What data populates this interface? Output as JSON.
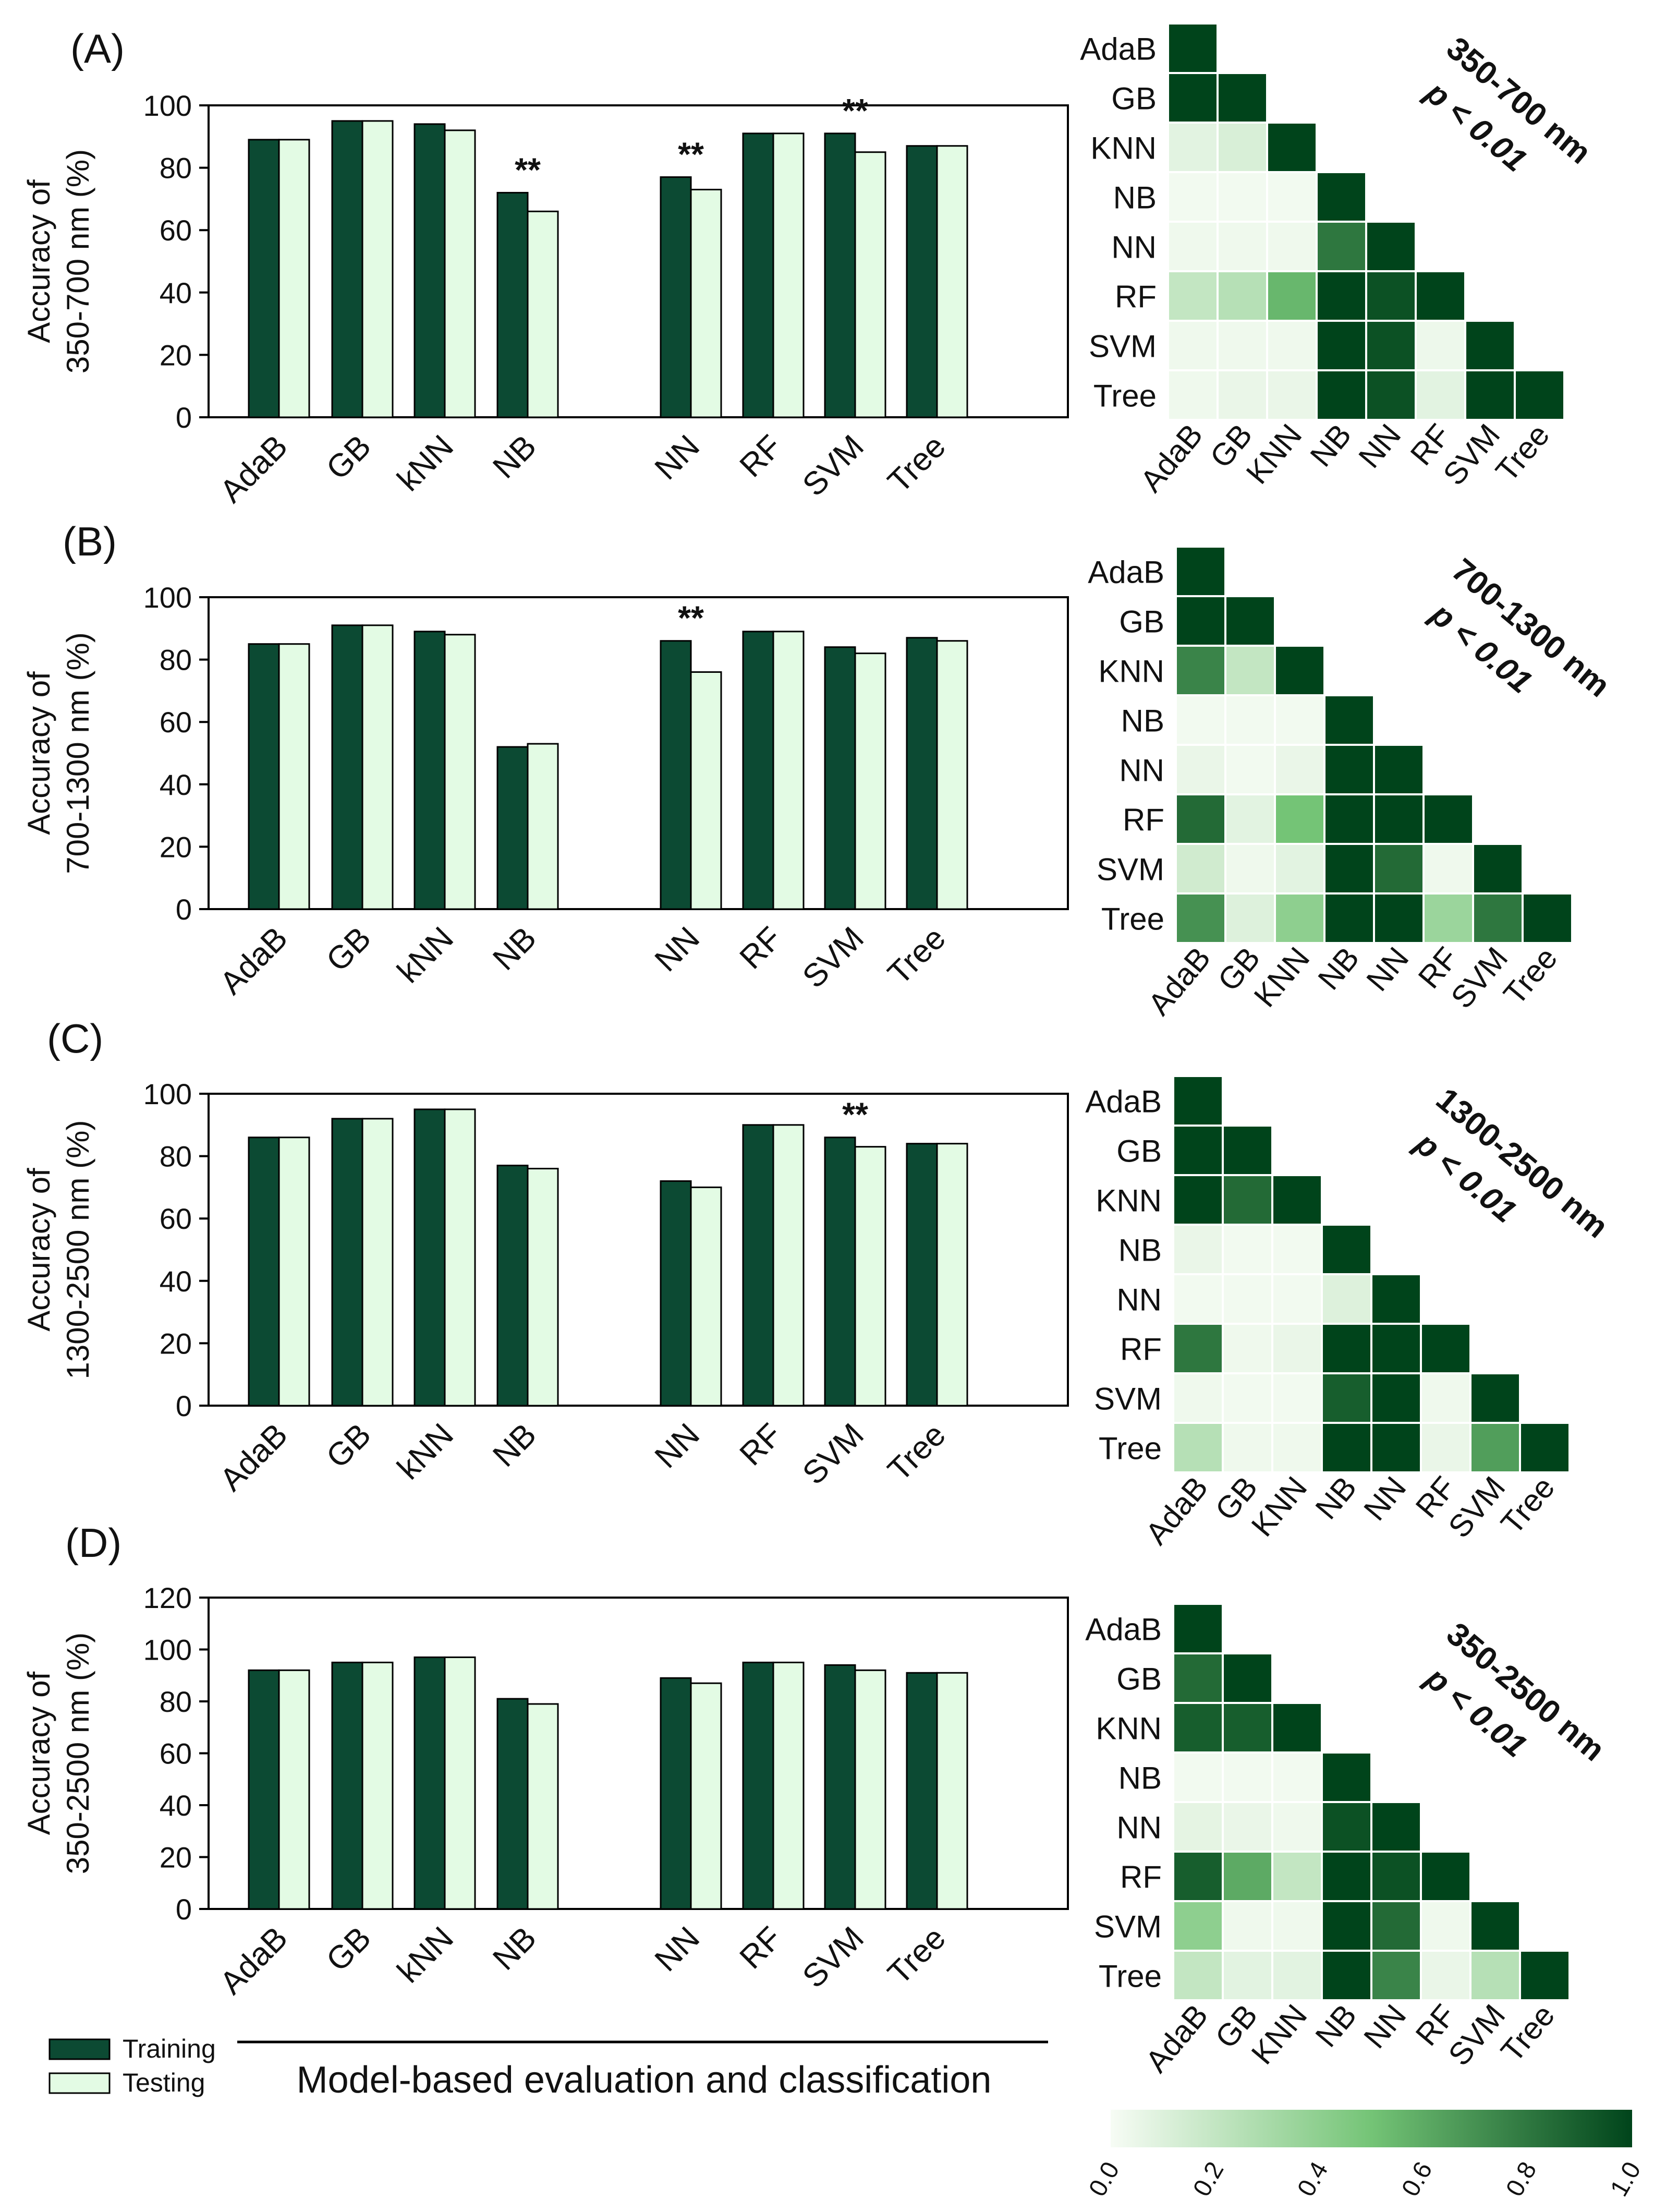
{
  "colors": {
    "training": "#0c4a33",
    "testing": "#e3fbe4",
    "outline": "#000000",
    "heat_low": "#f7fcf5",
    "heat_mid": "#74c476",
    "heat_high": "#00441b"
  },
  "chart_data": [
    {
      "type": "bar",
      "panel": "(A)",
      "ylabel_line1": "Accuracy of",
      "ylabel_line2": "350-700 nm (%)",
      "ylim": [
        0,
        100
      ],
      "yticks": [
        0,
        20,
        40,
        60,
        80,
        100
      ],
      "categories": [
        "AdaB",
        "GB",
        "kNN",
        "NB",
        "NN",
        "RF",
        "SVM",
        "Tree"
      ],
      "series": [
        {
          "name": "Training",
          "values": [
            89,
            95,
            94,
            72,
            77,
            91,
            91,
            87
          ]
        },
        {
          "name": "Testing",
          "values": [
            89,
            95,
            92,
            66,
            73,
            91,
            85,
            87
          ]
        }
      ],
      "significance": [
        {
          "category": "NB",
          "label": "**"
        },
        {
          "category": "NN",
          "label": "**"
        },
        {
          "category": "SVM",
          "label": "**"
        }
      ]
    },
    {
      "type": "heatmap",
      "panel": "(A)",
      "annotation_line1": "350-700 nm",
      "annotation_line2": "p < 0.01",
      "row_labels": [
        "AdaB",
        "GB",
        "KNN",
        "NB",
        "NN",
        "RF",
        "SVM",
        "Tree"
      ],
      "col_labels": [
        "AdaB",
        "GB",
        "KNN",
        "NB",
        "NN",
        "RF",
        "SVM",
        "Tree"
      ],
      "values": [
        [
          1.0
        ],
        [
          1.0,
          1.0
        ],
        [
          0.08,
          0.12,
          1.0
        ],
        [
          0.02,
          0.02,
          0.02,
          1.0
        ],
        [
          0.03,
          0.03,
          0.03,
          0.8,
          1.0
        ],
        [
          0.2,
          0.25,
          0.55,
          1.0,
          0.95,
          1.0
        ],
        [
          0.03,
          0.03,
          0.03,
          1.0,
          0.95,
          0.04,
          1.0
        ],
        [
          0.03,
          0.05,
          0.05,
          1.0,
          0.95,
          0.08,
          1.0,
          1.0
        ]
      ]
    },
    {
      "type": "bar",
      "panel": "(B)",
      "ylabel_line1": "Accuracy of",
      "ylabel_line2": "700-1300 nm (%)",
      "ylim": [
        0,
        100
      ],
      "yticks": [
        0,
        20,
        40,
        60,
        80,
        100
      ],
      "categories": [
        "AdaB",
        "GB",
        "kNN",
        "NB",
        "NN",
        "RF",
        "SVM",
        "Tree"
      ],
      "series": [
        {
          "name": "Training",
          "values": [
            85,
            91,
            89,
            52,
            86,
            89,
            84,
            87
          ]
        },
        {
          "name": "Testing",
          "values": [
            85,
            91,
            88,
            53,
            76,
            89,
            82,
            86
          ]
        }
      ],
      "significance": [
        {
          "category": "NN",
          "label": "**"
        }
      ]
    },
    {
      "type": "heatmap",
      "panel": "(B)",
      "annotation_line1": "700-1300 nm",
      "annotation_line2": "p < 0.01",
      "row_labels": [
        "AdaB",
        "GB",
        "KNN",
        "NB",
        "NN",
        "RF",
        "SVM",
        "Tree"
      ],
      "col_labels": [
        "AdaB",
        "GB",
        "KNN",
        "NB",
        "NN",
        "RF",
        "SVM",
        "Tree"
      ],
      "values": [
        [
          1.0
        ],
        [
          1.0,
          1.0
        ],
        [
          0.75,
          0.2,
          1.0
        ],
        [
          0.02,
          0.02,
          0.02,
          1.0
        ],
        [
          0.05,
          0.02,
          0.05,
          1.0,
          1.0
        ],
        [
          0.85,
          0.08,
          0.5,
          1.0,
          1.0,
          1.0
        ],
        [
          0.15,
          0.03,
          0.08,
          1.0,
          0.85,
          0.03,
          1.0
        ],
        [
          0.7,
          0.1,
          0.4,
          1.0,
          1.0,
          0.35,
          0.8,
          1.0
        ]
      ]
    },
    {
      "type": "bar",
      "panel": "(C)",
      "ylabel_line1": "Accuracy of",
      "ylabel_line2": "1300-2500 nm (%)",
      "ylim": [
        0,
        100
      ],
      "yticks": [
        0,
        20,
        40,
        60,
        80,
        100
      ],
      "categories": [
        "AdaB",
        "GB",
        "kNN",
        "NB",
        "NN",
        "RF",
        "SVM",
        "Tree"
      ],
      "series": [
        {
          "name": "Training",
          "values": [
            86,
            92,
            95,
            77,
            72,
            90,
            86,
            84
          ]
        },
        {
          "name": "Testing",
          "values": [
            86,
            92,
            95,
            76,
            70,
            90,
            83,
            84
          ]
        }
      ],
      "significance": [
        {
          "category": "SVM",
          "label": "**"
        }
      ]
    },
    {
      "type": "heatmap",
      "panel": "(C)",
      "annotation_line1": "1300-2500 nm",
      "annotation_line2": "p < 0.01",
      "row_labels": [
        "AdaB",
        "GB",
        "KNN",
        "NB",
        "NN",
        "RF",
        "SVM",
        "Tree"
      ],
      "col_labels": [
        "AdaB",
        "GB",
        "KNN",
        "NB",
        "NN",
        "RF",
        "SVM",
        "Tree"
      ],
      "values": [
        [
          1.0
        ],
        [
          1.0,
          1.0
        ],
        [
          1.0,
          0.85,
          1.0
        ],
        [
          0.05,
          0.02,
          0.02,
          1.0
        ],
        [
          0.02,
          0.02,
          0.02,
          0.1,
          1.0
        ],
        [
          0.8,
          0.03,
          0.05,
          1.0,
          1.0,
          1.0
        ],
        [
          0.03,
          0.02,
          0.02,
          0.9,
          1.0,
          0.03,
          1.0
        ],
        [
          0.25,
          0.03,
          0.03,
          1.0,
          1.0,
          0.05,
          0.65,
          1.0
        ]
      ]
    },
    {
      "type": "bar",
      "panel": "(D)",
      "ylabel_line1": "Accuracy of",
      "ylabel_line2": "350-2500 nm (%)",
      "ylim": [
        0,
        120
      ],
      "yticks": [
        0,
        20,
        40,
        60,
        80,
        100,
        120
      ],
      "categories": [
        "AdaB",
        "GB",
        "kNN",
        "NB",
        "NN",
        "RF",
        "SVM",
        "Tree"
      ],
      "series": [
        {
          "name": "Training",
          "values": [
            92,
            95,
            97,
            81,
            89,
            95,
            94,
            91
          ]
        },
        {
          "name": "Testing",
          "values": [
            92,
            95,
            97,
            79,
            87,
            95,
            92,
            91
          ]
        }
      ],
      "significance": []
    },
    {
      "type": "heatmap",
      "panel": "(D)",
      "annotation_line1": "350-2500 nm",
      "annotation_line2": "p < 0.01",
      "row_labels": [
        "AdaB",
        "GB",
        "KNN",
        "NB",
        "NN",
        "RF",
        "SVM",
        "Tree"
      ],
      "col_labels": [
        "AdaB",
        "GB",
        "KNN",
        "NB",
        "NN",
        "RF",
        "SVM",
        "Tree"
      ],
      "values": [
        [
          1.0
        ],
        [
          0.85,
          1.0
        ],
        [
          0.9,
          0.9,
          1.0
        ],
        [
          0.02,
          0.02,
          0.02,
          1.0
        ],
        [
          0.07,
          0.05,
          0.03,
          0.95,
          1.0
        ],
        [
          0.9,
          0.6,
          0.2,
          1.0,
          0.95,
          1.0
        ],
        [
          0.4,
          0.03,
          0.03,
          1.0,
          0.85,
          0.03,
          1.0
        ],
        [
          0.2,
          0.08,
          0.08,
          1.0,
          0.75,
          0.05,
          0.25,
          1.0
        ]
      ]
    }
  ],
  "legend": {
    "training_label": "Training",
    "testing_label": "Testing"
  },
  "xlabel": "Model-based evaluation and classification",
  "colorbar": {
    "ticks": [
      "0.0",
      "0.2",
      "0.4",
      "0.6",
      "0.8",
      "1.0"
    ]
  }
}
